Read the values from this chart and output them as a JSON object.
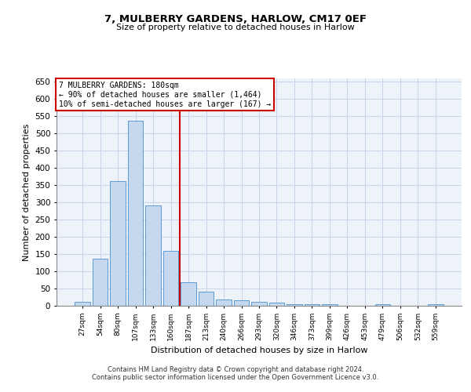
{
  "title1": "7, MULBERRY GARDENS, HARLOW, CM17 0EF",
  "title2": "Size of property relative to detached houses in Harlow",
  "xlabel": "Distribution of detached houses by size in Harlow",
  "ylabel": "Number of detached properties",
  "bar_color": "#c5d8ed",
  "bar_edge_color": "#5b9bd5",
  "grid_color": "#c8d4e8",
  "background_color": "#eef2f9",
  "annotation_box_color": "#cc0000",
  "vline_color": "#cc0000",
  "categories": [
    "27sqm",
    "54sqm",
    "80sqm",
    "107sqm",
    "133sqm",
    "160sqm",
    "187sqm",
    "213sqm",
    "240sqm",
    "266sqm",
    "293sqm",
    "320sqm",
    "346sqm",
    "373sqm",
    "399sqm",
    "426sqm",
    "453sqm",
    "479sqm",
    "506sqm",
    "532sqm",
    "559sqm"
  ],
  "values": [
    11,
    136,
    363,
    538,
    292,
    160,
    68,
    40,
    18,
    15,
    12,
    9,
    4,
    4,
    4,
    0,
    0,
    5,
    0,
    0,
    5
  ],
  "vline_x_index": 5.5,
  "annotation_text": "7 MULBERRY GARDENS: 180sqm\n← 90% of detached houses are smaller (1,464)\n10% of semi-detached houses are larger (167) →",
  "footer1": "Contains HM Land Registry data © Crown copyright and database right 2024.",
  "footer2": "Contains public sector information licensed under the Open Government Licence v3.0.",
  "ylim": [
    0,
    660
  ],
  "yticks": [
    0,
    50,
    100,
    150,
    200,
    250,
    300,
    350,
    400,
    450,
    500,
    550,
    600,
    650
  ]
}
